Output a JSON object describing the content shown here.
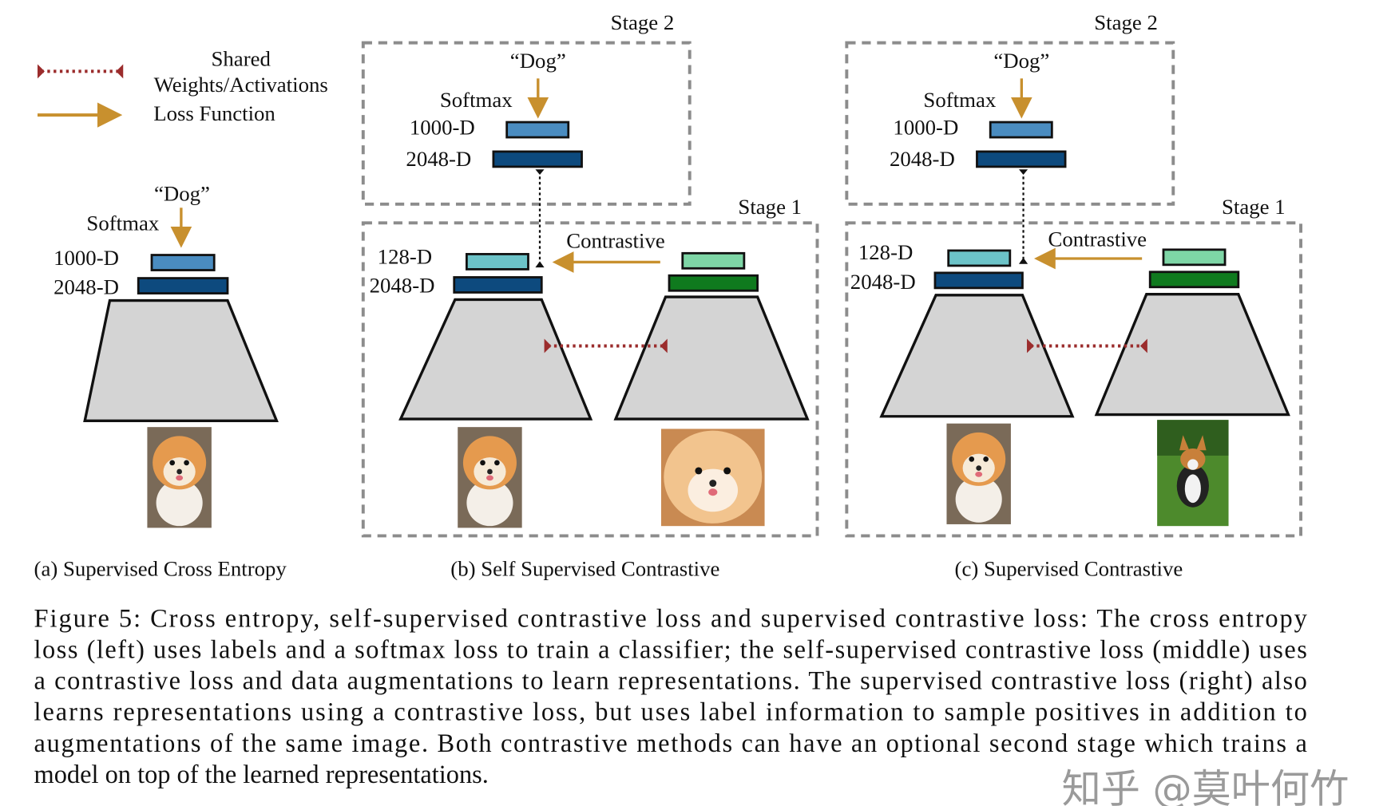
{
  "legend": {
    "shared_line1": "Shared",
    "shared_line2": "Weights/Activations",
    "loss": "Loss Function"
  },
  "labels": {
    "dog": "“Dog”",
    "softmax": "Softmax",
    "d1000": "1000-D",
    "d2048": "2048-D",
    "d128": "128-D",
    "contrastive": "Contrastive",
    "stage1": "Stage 1",
    "stage2": "Stage 2"
  },
  "subcaptions": {
    "a": "(a) Supervised Cross Entropy",
    "b": "(b) Self Supervised Contrastive",
    "c": "(c) Supervised Contrastive"
  },
  "caption_lines": [
    "Figure 5:  Cross entropy, self-supervised contrastive loss and supervised contrastive loss: The cross entropy",
    "loss (left) uses labels and a softmax loss to train a classifier; the self-supervised contrastive loss (middle) uses",
    "a contrastive loss and data augmentations to learn representations. The supervised contrastive loss (right) also",
    "learns representations using a contrastive loss, but uses label information to sample positives in addition to",
    "augmentations of the same image. Both contrastive methods can have an optional second stage which trains a",
    "model on top of the learned representations."
  ],
  "watermark": "知乎 @莫叶何竹",
  "colors": {
    "loss_arrow": "#c8902e",
    "shared_arrow": "#9b2c2c",
    "box_1000": "#4a8cc0",
    "box_2048": "#0d4a7e",
    "box_128": "#6cc3c8",
    "box_green_light": "#7ed6a6",
    "box_green_dark": "#0f7a1e",
    "encoder": "#d4d4d4"
  }
}
